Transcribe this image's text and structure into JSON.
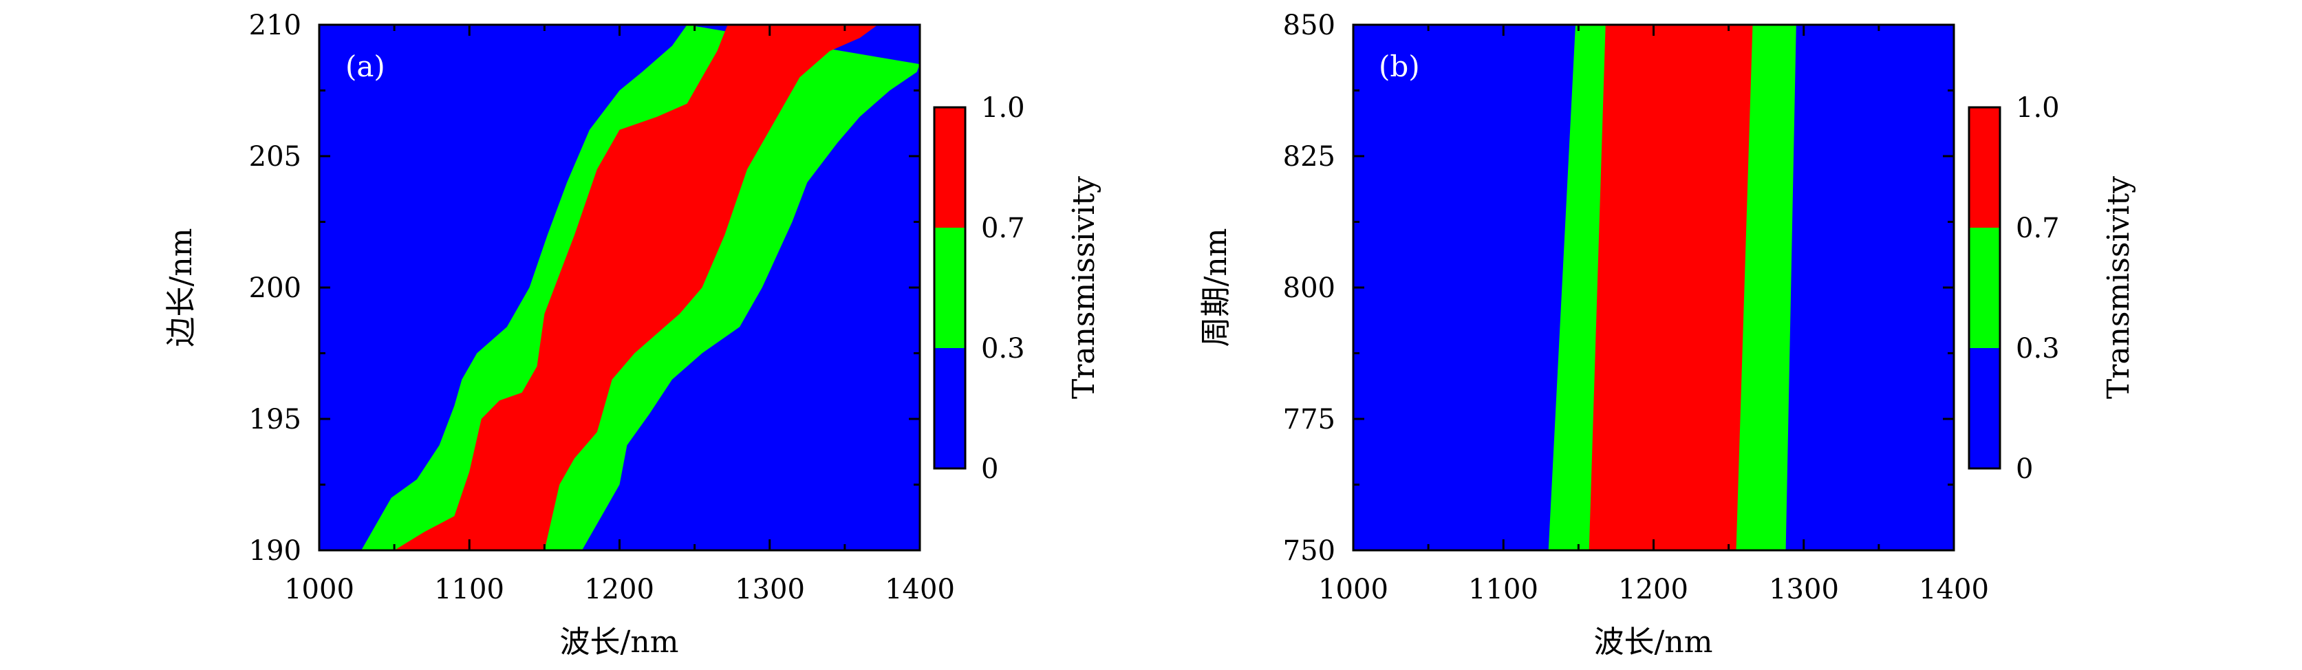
{
  "colors": {
    "low": "#0000ff",
    "mid": "#00ff00",
    "high": "#ff0000"
  },
  "chart_data": [
    {
      "type": "heatmap",
      "panel_label": "(a)",
      "xlabel": "波长/nm",
      "ylabel": "边长/nm",
      "xlim": [
        1000,
        1400
      ],
      "ylim": [
        190,
        210
      ],
      "xticks": [
        "1000",
        "1100",
        "1200",
        "1300",
        "1400"
      ],
      "yticks": [
        "190",
        "195",
        "200",
        "205",
        "210"
      ],
      "xtick_values": [
        1000,
        1100,
        1200,
        1300,
        1400
      ],
      "ytick_values": [
        190,
        195,
        200,
        205,
        210
      ],
      "colorbar": {
        "label": "Transmissivity",
        "levels": [
          0,
          0.3,
          0.7,
          1.0
        ],
        "tick_labels": [
          "0",
          "0.3",
          "0.7",
          "1.0"
        ]
      },
      "boundaries": {
        "t03_left": [
          [
            1028,
            190
          ],
          [
            1048,
            192
          ],
          [
            1065,
            192.7
          ],
          [
            1080,
            194
          ],
          [
            1090,
            195.5
          ],
          [
            1095,
            196.5
          ],
          [
            1105,
            197.5
          ],
          [
            1125,
            198.5
          ],
          [
            1140,
            200
          ],
          [
            1152,
            202
          ],
          [
            1165,
            204
          ],
          [
            1180,
            206
          ],
          [
            1200,
            207.5
          ],
          [
            1215,
            208.2
          ],
          [
            1235,
            209.2
          ],
          [
            1245,
            210
          ]
        ],
        "t07_left": [
          [
            1050,
            190
          ],
          [
            1070,
            190.7
          ],
          [
            1090,
            191.3
          ],
          [
            1100,
            193
          ],
          [
            1108,
            195
          ],
          [
            1120,
            195.7
          ],
          [
            1135,
            196
          ],
          [
            1145,
            197
          ],
          [
            1150,
            199
          ],
          [
            1160,
            200.5
          ],
          [
            1170,
            202
          ],
          [
            1185,
            204.5
          ],
          [
            1200,
            206
          ],
          [
            1225,
            206.5
          ],
          [
            1245,
            207
          ],
          [
            1255,
            208
          ],
          [
            1265,
            209
          ],
          [
            1272,
            210
          ]
        ],
        "t07_right": [
          [
            1150,
            190
          ],
          [
            1160,
            192.5
          ],
          [
            1170,
            193.5
          ],
          [
            1185,
            194.5
          ],
          [
            1195,
            196.5
          ],
          [
            1210,
            197.5
          ],
          [
            1230,
            198.5
          ],
          [
            1240,
            199
          ],
          [
            1255,
            200
          ],
          [
            1270,
            202
          ],
          [
            1285,
            204.5
          ],
          [
            1300,
            206
          ],
          [
            1320,
            208
          ],
          [
            1340,
            209
          ],
          [
            1360,
            209.5
          ],
          [
            1372,
            210
          ]
        ],
        "t03_right": [
          [
            1175,
            190
          ],
          [
            1190,
            191.5
          ],
          [
            1200,
            192.5
          ],
          [
            1205,
            194
          ],
          [
            1220,
            195.2
          ],
          [
            1235,
            196.5
          ],
          [
            1255,
            197.5
          ],
          [
            1280,
            198.5
          ],
          [
            1295,
            200
          ],
          [
            1315,
            202.5
          ],
          [
            1325,
            204
          ],
          [
            1345,
            205.5
          ],
          [
            1360,
            206.5
          ],
          [
            1380,
            207.5
          ],
          [
            1398,
            208.2
          ],
          [
            1400,
            208.5
          ]
        ]
      }
    },
    {
      "type": "heatmap",
      "panel_label": "(b)",
      "xlabel": "波长/nm",
      "ylabel": "周期/nm",
      "xlim": [
        1000,
        1400
      ],
      "ylim": [
        750,
        850
      ],
      "xticks": [
        "1000",
        "1100",
        "1200",
        "1300",
        "1400"
      ],
      "yticks": [
        "750",
        "775",
        "800",
        "825",
        "850"
      ],
      "xtick_values": [
        1000,
        1100,
        1200,
        1300,
        1400
      ],
      "ytick_values": [
        750,
        775,
        800,
        825,
        850
      ],
      "colorbar": {
        "label": "Transmissivity",
        "levels": [
          0,
          0.3,
          0.7,
          1.0
        ],
        "tick_labels": [
          "0",
          "0.3",
          "0.7",
          "1.0"
        ]
      },
      "boundaries": {
        "t03_left": [
          [
            1130,
            750
          ],
          [
            1148,
            850
          ]
        ],
        "t07_left": [
          [
            1157,
            750
          ],
          [
            1168,
            850
          ]
        ],
        "t07_right": [
          [
            1255,
            750
          ],
          [
            1266,
            850
          ]
        ],
        "t03_right": [
          [
            1288,
            750
          ],
          [
            1295,
            850
          ]
        ]
      }
    }
  ]
}
